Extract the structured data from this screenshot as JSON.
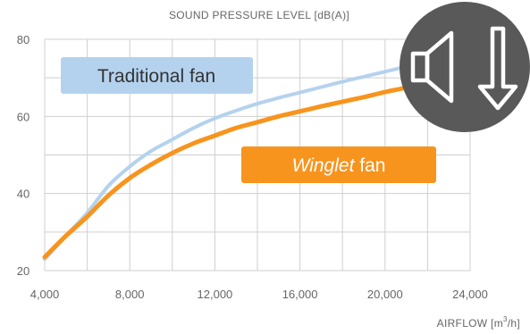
{
  "chart_data": {
    "type": "line",
    "title": "SOUND PRESSURE LEVEL [dB(A)]",
    "xlabel": "AIRFLOW [m³/h]",
    "xlabel_main": "AIRFLOW [m",
    "xlabel_sup": "3",
    "xlabel_end": "/h]",
    "ylabel": "",
    "xlim": [
      4000,
      24000
    ],
    "ylim": [
      20,
      80
    ],
    "x_ticks": [
      4000,
      8000,
      12000,
      16000,
      20000,
      24000
    ],
    "x_tick_labels": [
      "4,000",
      "8,000",
      "12,000",
      "16,000",
      "20,000",
      "24,000"
    ],
    "y_ticks": [
      20,
      40,
      60,
      80
    ],
    "y_tick_labels": [
      "20",
      "40",
      "60",
      "80"
    ],
    "grid": true,
    "legend": "inline labels",
    "series": [
      {
        "name": "Traditional fan",
        "color": "#b4d2ee",
        "points": [
          [
            4000,
            23
          ],
          [
            5000,
            29
          ],
          [
            6000,
            35
          ],
          [
            7000,
            42
          ],
          [
            8000,
            47
          ],
          [
            9000,
            51
          ],
          [
            10000,
            54
          ],
          [
            11000,
            57
          ],
          [
            12000,
            59.5
          ],
          [
            13000,
            61.5
          ],
          [
            14000,
            63.3
          ],
          [
            15000,
            64.8
          ],
          [
            16000,
            66.2
          ],
          [
            17000,
            67.6
          ],
          [
            18000,
            69
          ],
          [
            19000,
            70.3
          ],
          [
            20000,
            71.6
          ],
          [
            21000,
            72.9
          ],
          [
            22000,
            74
          ]
        ]
      },
      {
        "name": "Winglet fan",
        "color": "#f7941d",
        "points": [
          [
            4000,
            23.5
          ],
          [
            5000,
            29
          ],
          [
            6000,
            34
          ],
          [
            7000,
            39.5
          ],
          [
            8000,
            44
          ],
          [
            9000,
            47.5
          ],
          [
            10000,
            50.5
          ],
          [
            11000,
            53
          ],
          [
            12000,
            55
          ],
          [
            13000,
            57
          ],
          [
            14000,
            58.5
          ],
          [
            15000,
            60
          ],
          [
            16000,
            61.3
          ],
          [
            17000,
            62.6
          ],
          [
            18000,
            63.8
          ],
          [
            19000,
            65
          ],
          [
            20000,
            66.3
          ],
          [
            21000,
            67.5
          ],
          [
            22000,
            69
          ]
        ]
      }
    ],
    "labels": {
      "traditional": {
        "text": "Traditional fan",
        "bg": "#b4d2ee",
        "color": "#333333"
      },
      "winglet": {
        "italic": "Winglet",
        "rest": " fan",
        "bg": "#f7941d",
        "color": "#ffffff"
      }
    }
  },
  "icon": {
    "name": "speaker-volume-down-icon",
    "bg": "#595959",
    "fg": "#ffffff"
  }
}
